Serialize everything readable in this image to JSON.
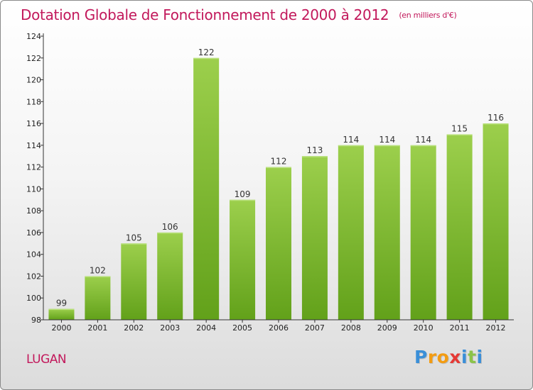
{
  "colors": {
    "title": "#c2185b",
    "bar_light": "#9ccf4c",
    "bar_dark": "#62a11a",
    "axis": "#333333"
  },
  "header": {
    "title": "Dotation Globale de Fonctionnement de 2000 à 2012",
    "subtitle": "(en milliers d'€)"
  },
  "footer": {
    "commune": "LUGAN",
    "logo": {
      "letters": [
        {
          "char": "P",
          "color": "#3a8fd8"
        },
        {
          "char": "r",
          "color": "#f39c12"
        },
        {
          "char": "o",
          "color": "#f39c12"
        },
        {
          "char": "x",
          "color": "#e53935"
        },
        {
          "char": "i",
          "color": "#3a8fd8"
        },
        {
          "char": "t",
          "color": "#8bc34a"
        },
        {
          "char": "i",
          "color": "#3a8fd8"
        }
      ]
    }
  },
  "chart_data": {
    "type": "bar",
    "title": "Dotation Globale de Fonctionnement de 2000 à 2012",
    "subtitle": "(en milliers d'€)",
    "categories": [
      "2000",
      "2001",
      "2002",
      "2003",
      "2004",
      "2005",
      "2006",
      "2007",
      "2008",
      "2009",
      "2010",
      "2011",
      "2012"
    ],
    "values": [
      99,
      102,
      105,
      106,
      122,
      109,
      112,
      113,
      114,
      114,
      114,
      115,
      116
    ],
    "ylim": [
      98,
      124
    ],
    "yticks": [
      98,
      100,
      102,
      104,
      106,
      108,
      110,
      112,
      114,
      116,
      118,
      120,
      122,
      124
    ],
    "xlabel": "",
    "ylabel": "",
    "grid": false,
    "data_labels": true
  }
}
